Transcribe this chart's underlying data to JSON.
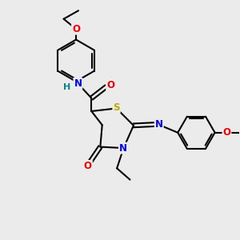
{
  "bg_color": "#ebebeb",
  "atom_colors": {
    "C": "#000000",
    "N": "#0000ee",
    "NH": "#0000ee",
    "H": "#008888",
    "O": "#ee0000",
    "S": "#bbaa00"
  },
  "bond_color": "#000000",
  "bond_width": 1.5,
  "figsize": [
    3.0,
    3.0
  ],
  "dpi": 100,
  "xlim": [
    0,
    10
  ],
  "ylim": [
    0,
    10
  ]
}
